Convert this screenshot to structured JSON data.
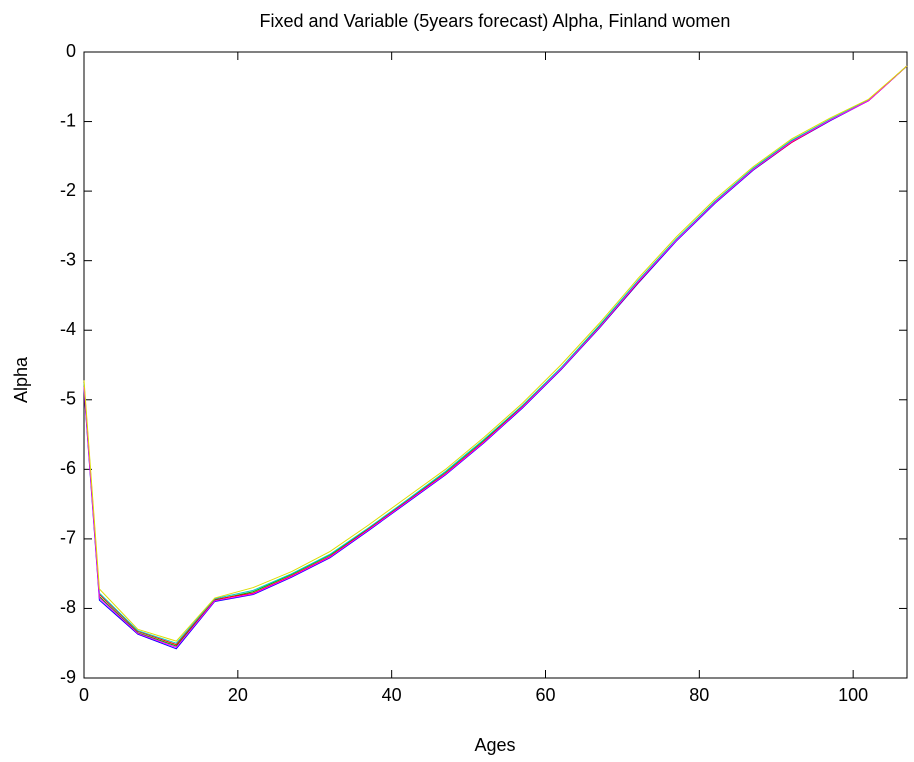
{
  "chart_data": {
    "type": "line",
    "title": "Fixed and Variable (5years forecast) Alpha, Finland women",
    "x_label": "Ages",
    "y_label": "Alpha",
    "x": [
      0,
      2,
      7,
      12,
      17,
      22,
      27,
      32,
      37,
      42,
      47,
      52,
      57,
      62,
      67,
      72,
      77,
      82,
      87,
      92,
      97,
      102,
      107
    ],
    "series": [
      {
        "color": "#0000ff",
        "values": [
          -4.85,
          -7.88,
          -8.37,
          -8.58,
          -7.9,
          -7.8,
          -7.55,
          -7.27,
          -6.88,
          -6.48,
          -6.08,
          -5.62,
          -5.12,
          -4.57,
          -3.97,
          -3.33,
          -2.72,
          -2.18,
          -1.7,
          -1.3,
          -0.99,
          -0.7,
          -0.2
        ]
      },
      {
        "color": "#00aa00",
        "values": [
          -4.8,
          -7.83,
          -8.35,
          -8.54,
          -7.88,
          -7.76,
          -7.51,
          -7.23,
          -6.85,
          -6.45,
          -6.04,
          -5.58,
          -5.09,
          -4.55,
          -3.94,
          -3.3,
          -2.7,
          -2.15,
          -1.68,
          -1.28,
          -0.97,
          -0.7,
          -0.2
        ]
      },
      {
        "color": "#ff0000",
        "values": [
          -4.78,
          -7.8,
          -8.33,
          -8.52,
          -7.87,
          -7.78,
          -7.53,
          -7.25,
          -6.86,
          -6.46,
          -6.06,
          -5.6,
          -5.1,
          -4.56,
          -3.96,
          -3.32,
          -2.7,
          -2.16,
          -1.69,
          -1.3,
          -0.98,
          -0.7,
          -0.2
        ]
      },
      {
        "color": "#00cccc",
        "values": [
          -4.76,
          -7.78,
          -8.32,
          -8.5,
          -7.86,
          -7.74,
          -7.5,
          -7.22,
          -6.84,
          -6.44,
          -6.03,
          -5.57,
          -5.08,
          -4.54,
          -3.93,
          -3.29,
          -2.69,
          -2.15,
          -1.67,
          -1.27,
          -0.97,
          -0.69,
          -0.2
        ]
      },
      {
        "color": "#ff00ff",
        "values": [
          -4.82,
          -7.85,
          -8.36,
          -8.56,
          -7.89,
          -7.79,
          -7.54,
          -7.26,
          -6.87,
          -6.47,
          -6.07,
          -5.61,
          -5.11,
          -4.56,
          -3.96,
          -3.31,
          -2.71,
          -2.17,
          -1.69,
          -1.29,
          -0.98,
          -0.7,
          -0.2
        ]
      },
      {
        "color": "#dddd00",
        "values": [
          -4.72,
          -7.72,
          -8.3,
          -8.47,
          -7.85,
          -7.7,
          -7.47,
          -7.18,
          -6.8,
          -6.4,
          -6.0,
          -5.54,
          -5.05,
          -4.5,
          -3.9,
          -3.26,
          -2.66,
          -2.12,
          -1.65,
          -1.25,
          -0.95,
          -0.68,
          -0.2
        ]
      }
    ],
    "xlim": [
      0,
      107
    ],
    "ylim": [
      -9,
      0
    ],
    "xticks": [
      0,
      20,
      40,
      60,
      80,
      100
    ],
    "yticks": [
      -9,
      -8,
      -7,
      -6,
      -5,
      -4,
      -3,
      -2,
      -1,
      0
    ],
    "grid": false
  }
}
